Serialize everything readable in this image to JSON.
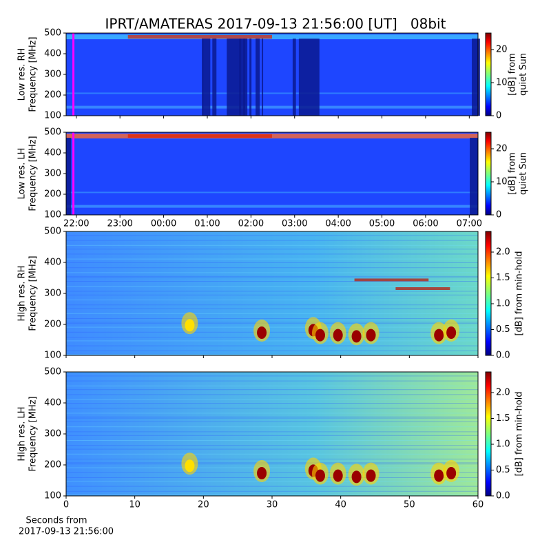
{
  "chart_data": [
    {
      "type": "heatmap",
      "title": "IPRT/AMATERAS 2017-09-13 21:56:00 [UT]   08bit",
      "ylabel": [
        "Low res. RH",
        "Frequency [MHz]"
      ],
      "xlim": [
        "21:46",
        "07:12"
      ],
      "ylim": [
        100,
        500
      ],
      "yticks": [
        100,
        200,
        300,
        400,
        500
      ],
      "marker": "21:56",
      "marker_color": "#ff00ff",
      "colormap": "jet",
      "clim": [
        0,
        25
      ],
      "cticks": [
        0,
        10,
        20
      ],
      "clabel": [
        "[dB] from",
        "quiet Sun"
      ]
    },
    {
      "type": "heatmap",
      "ylabel": [
        "Low res. LH",
        "Frequency [MHz]"
      ],
      "xlim": [
        "21:46",
        "07:12"
      ],
      "ylim": [
        100,
        500
      ],
      "yticks": [
        100,
        200,
        300,
        400,
        500
      ],
      "xticks": [
        "22:00",
        "23:00",
        "00:00",
        "01:00",
        "02:00",
        "03:00",
        "04:00",
        "05:00",
        "06:00",
        "07:00"
      ],
      "marker": "21:56",
      "marker_color": "#ff00ff",
      "colormap": "jet",
      "clim": [
        0,
        25
      ],
      "cticks": [
        0,
        10,
        20
      ],
      "clabel": [
        "[dB] from",
        "quiet Sun"
      ]
    },
    {
      "type": "heatmap",
      "ylabel": [
        "High res. RH",
        "Frequency [MHz]"
      ],
      "xlim": [
        0,
        60
      ],
      "ylim": [
        100,
        500
      ],
      "yticks": [
        100,
        200,
        300,
        400,
        500
      ],
      "colormap": "jet",
      "clim": [
        0,
        2.4
      ],
      "cticks": [
        {
          "value": 0,
          "label": "0.0"
        },
        0.5,
        {
          "value": 1,
          "label": "1.0"
        },
        1.5,
        {
          "value": 2,
          "label": "2.0"
        }
      ],
      "clabel": [
        "[dB] from min-hold"
      ]
    },
    {
      "type": "heatmap",
      "ylabel": [
        "High res. LH",
        "Frequency [MHz]"
      ],
      "xlim": [
        0,
        60
      ],
      "ylim": [
        100,
        500
      ],
      "yticks": [
        100,
        200,
        300,
        400,
        500
      ],
      "xticks": [
        0,
        10,
        20,
        30,
        40,
        50,
        60
      ],
      "xlabel": [
        "Seconds from",
        "2017-09-13 21:56:00"
      ],
      "colormap": "jet",
      "clim": [
        0,
        2.4
      ],
      "cticks": [
        {
          "value": 0,
          "label": "0.0"
        },
        0.5,
        {
          "value": 1,
          "label": "1.0"
        },
        1.5,
        {
          "value": 2,
          "label": "2.0"
        }
      ],
      "clabel": [
        "[dB] from min-hold"
      ]
    }
  ]
}
